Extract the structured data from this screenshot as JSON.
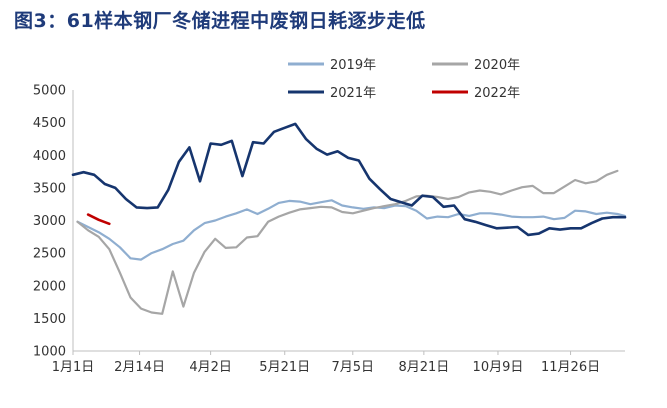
{
  "title": "图3：61样本钢厂冬储进程中废钢日耗逐步走低",
  "chart_data": {
    "type": "line",
    "ylim": [
      1000,
      5000
    ],
    "yticks": [
      1000,
      1500,
      2000,
      2500,
      3000,
      3500,
      4000,
      4500,
      5000
    ],
    "x_range_days": [
      0,
      365
    ],
    "xticks": [
      {
        "label": "1月1日",
        "day": 0
      },
      {
        "label": "2月14日",
        "day": 44
      },
      {
        "label": "4月2日",
        "day": 91
      },
      {
        "label": "5月21日",
        "day": 140
      },
      {
        "label": "7月5日",
        "day": 185
      },
      {
        "label": "8月21日",
        "day": 232
      },
      {
        "label": "10月9日",
        "day": 281
      },
      {
        "label": "11月26日",
        "day": 329
      }
    ],
    "legend_position": "top",
    "grid": false,
    "series": [
      {
        "name": "2019年",
        "color": "#8faed0",
        "x": [
          3,
          10,
          17,
          24,
          31,
          38,
          45,
          52,
          59,
          66,
          73,
          80,
          87,
          94,
          101,
          108,
          115,
          122,
          129,
          136,
          143,
          150,
          157,
          164,
          171,
          178,
          185,
          192,
          199,
          206,
          213,
          220,
          227,
          234,
          241,
          248,
          255,
          262,
          269,
          276,
          283,
          290,
          297,
          304,
          311,
          318,
          325,
          332,
          339,
          346,
          353,
          360,
          365
        ],
        "y": [
          2980,
          2900,
          2820,
          2720,
          2590,
          2420,
          2400,
          2500,
          2560,
          2640,
          2690,
          2850,
          2960,
          3000,
          3060,
          3110,
          3170,
          3100,
          3180,
          3270,
          3300,
          3290,
          3250,
          3280,
          3310,
          3230,
          3200,
          3180,
          3200,
          3190,
          3230,
          3220,
          3150,
          3030,
          3060,
          3050,
          3100,
          3070,
          3110,
          3110,
          3090,
          3060,
          3050,
          3050,
          3060,
          3020,
          3040,
          3150,
          3140,
          3100,
          3120,
          3100,
          3070
        ]
      },
      {
        "name": "2020年",
        "color": "#a6a6a6",
        "x": [
          3,
          10,
          17,
          24,
          31,
          38,
          45,
          52,
          59,
          66,
          73,
          80,
          87,
          94,
          101,
          108,
          115,
          122,
          129,
          136,
          143,
          150,
          157,
          164,
          171,
          178,
          185,
          192,
          199,
          206,
          213,
          220,
          227,
          234,
          241,
          248,
          255,
          262,
          269,
          276,
          283,
          290,
          297,
          304,
          311,
          318,
          325,
          332,
          339,
          346,
          353,
          360
        ],
        "y": [
          2980,
          2850,
          2750,
          2560,
          2200,
          1820,
          1650,
          1590,
          1570,
          2220,
          1680,
          2200,
          2520,
          2720,
          2580,
          2590,
          2740,
          2760,
          2980,
          3060,
          3120,
          3170,
          3190,
          3210,
          3200,
          3130,
          3110,
          3150,
          3190,
          3220,
          3250,
          3300,
          3370,
          3380,
          3360,
          3330,
          3360,
          3430,
          3460,
          3440,
          3400,
          3460,
          3510,
          3530,
          3420,
          3420,
          3520,
          3620,
          3570,
          3600,
          3700,
          3760
        ]
      },
      {
        "name": "2021年",
        "color": "#16356e",
        "x": [
          0,
          7,
          14,
          21,
          28,
          35,
          42,
          49,
          56,
          63,
          70,
          77,
          84,
          91,
          98,
          105,
          112,
          119,
          126,
          133,
          140,
          147,
          154,
          161,
          168,
          175,
          182,
          189,
          196,
          203,
          210,
          217,
          224,
          231,
          238,
          245,
          252,
          259,
          266,
          273,
          280,
          287,
          294,
          301,
          308,
          315,
          322,
          329,
          336,
          343,
          350,
          357,
          365
        ],
        "y": [
          3700,
          3740,
          3700,
          3560,
          3500,
          3330,
          3200,
          3190,
          3200,
          3470,
          3900,
          4120,
          3600,
          4180,
          4160,
          4220,
          3680,
          4200,
          4180,
          4360,
          4420,
          4480,
          4250,
          4100,
          4010,
          4060,
          3960,
          3920,
          3640,
          3480,
          3330,
          3280,
          3230,
          3380,
          3360,
          3210,
          3230,
          3020,
          2980,
          2930,
          2880,
          2890,
          2900,
          2780,
          2800,
          2880,
          2860,
          2880,
          2880,
          2960,
          3030,
          3050,
          3050
        ]
      },
      {
        "name": "2022年",
        "color": "#c00000",
        "x": [
          10,
          17,
          24
        ],
        "y": [
          3090,
          3010,
          2950
        ]
      }
    ]
  }
}
